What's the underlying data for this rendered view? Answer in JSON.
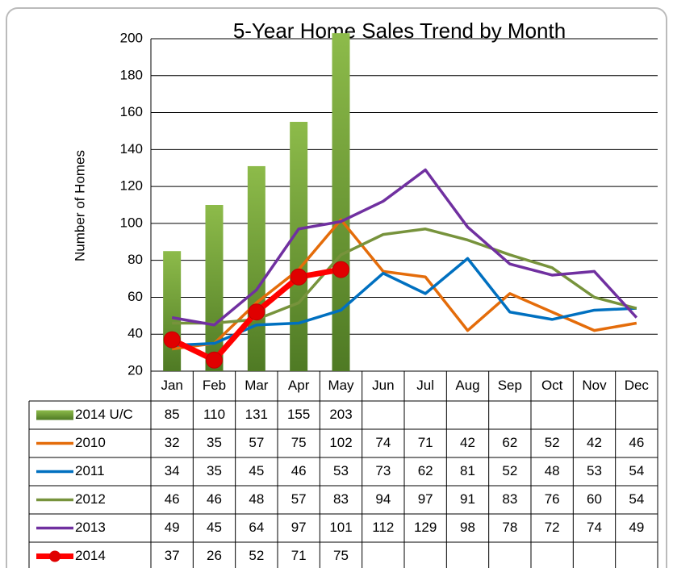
{
  "chart_data": {
    "type": "combo",
    "title": "5-Year Home Sales Trend by Month",
    "y_label": "Number of Homes",
    "categories": [
      "Jan",
      "Feb",
      "Mar",
      "Apr",
      "May",
      "Jun",
      "Jul",
      "Aug",
      "Sep",
      "Oct",
      "Nov",
      "Dec"
    ],
    "ylim": [
      20,
      200
    ],
    "yticks": [
      20,
      40,
      60,
      80,
      100,
      120,
      140,
      160,
      180,
      200
    ],
    "grid": true,
    "data_table": true,
    "series": [
      {
        "name": "2014 U/C",
        "type": "bar",
        "color": "#77a040",
        "values": [
          85,
          110,
          131,
          155,
          203,
          null,
          null,
          null,
          null,
          null,
          null,
          null
        ]
      },
      {
        "name": "2010",
        "type": "line",
        "color": "#e46c0a",
        "values": [
          32,
          35,
          57,
          75,
          102,
          74,
          71,
          42,
          62,
          52,
          42,
          46
        ]
      },
      {
        "name": "2011",
        "type": "line",
        "color": "#0070c0",
        "values": [
          34,
          35,
          45,
          46,
          53,
          73,
          62,
          81,
          52,
          48,
          53,
          54
        ]
      },
      {
        "name": "2012",
        "type": "line",
        "color": "#77933c",
        "values": [
          46,
          46,
          48,
          57,
          83,
          94,
          97,
          91,
          83,
          76,
          60,
          54
        ]
      },
      {
        "name": "2013",
        "type": "line",
        "color": "#7030a0",
        "values": [
          49,
          45,
          64,
          97,
          101,
          112,
          129,
          98,
          78,
          72,
          74,
          49
        ]
      },
      {
        "name": "2014",
        "type": "line",
        "color": "#ff0000",
        "markers": true,
        "values": [
          37,
          26,
          52,
          71,
          75,
          null,
          null,
          null,
          null,
          null,
          null,
          null
        ]
      }
    ]
  }
}
